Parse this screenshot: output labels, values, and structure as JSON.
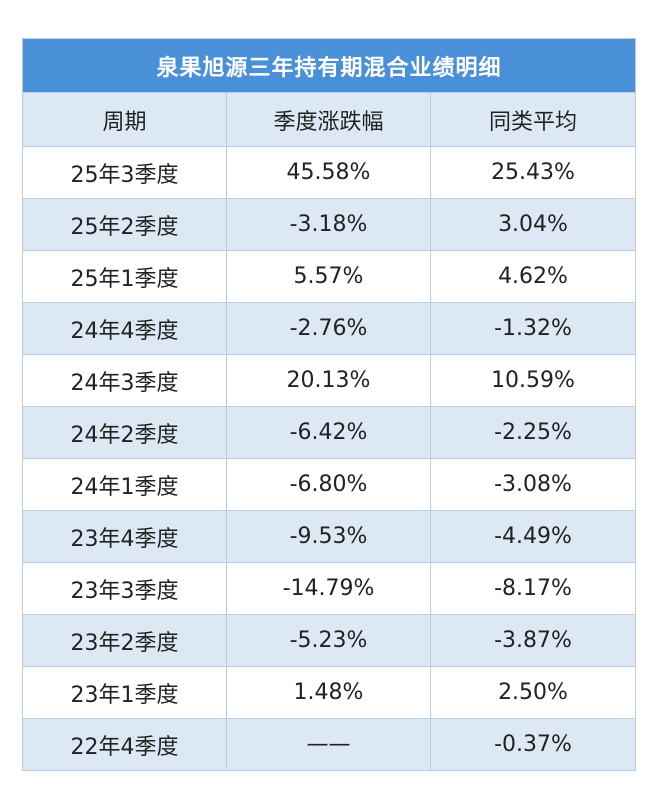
{
  "table": {
    "title": "泉果旭源三年持有期混合业绩明细",
    "headers": [
      "周期",
      "季度涨跌幅",
      "同类平均"
    ],
    "rows": [
      {
        "period": "25年3季度",
        "change": "45.58%",
        "avg": "25.43%"
      },
      {
        "period": "25年2季度",
        "change": "-3.18%",
        "avg": "3.04%"
      },
      {
        "period": "25年1季度",
        "change": "5.57%",
        "avg": "4.62%"
      },
      {
        "period": "24年4季度",
        "change": "-2.76%",
        "avg": "-1.32%"
      },
      {
        "period": "24年3季度",
        "change": "20.13%",
        "avg": "10.59%"
      },
      {
        "period": "24年2季度",
        "change": "-6.42%",
        "avg": "-2.25%"
      },
      {
        "period": "24年1季度",
        "change": "-6.80%",
        "avg": "-3.08%"
      },
      {
        "period": "23年4季度",
        "change": "-9.53%",
        "avg": "-4.49%"
      },
      {
        "period": "23年3季度",
        "change": "-14.79%",
        "avg": "-8.17%"
      },
      {
        "period": "23年2季度",
        "change": "-5.23%",
        "avg": "-3.87%"
      },
      {
        "period": "23年1季度",
        "change": "1.48%",
        "avg": "2.50%"
      },
      {
        "period": "22年4季度",
        "change": "——",
        "avg": "-0.37%"
      }
    ]
  },
  "colors": {
    "title_bg": "#4a90d9",
    "header_bg": "#dce9f5",
    "stripe_bg": "#dce9f5",
    "border": "#b8cde3"
  }
}
